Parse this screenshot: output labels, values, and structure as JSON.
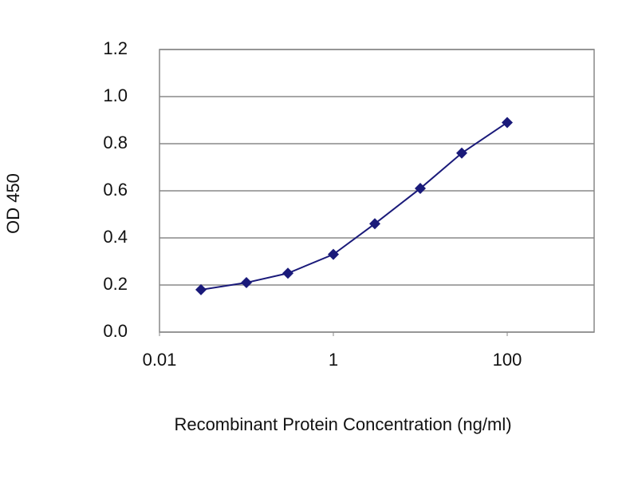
{
  "chart_data": {
    "type": "line",
    "x_label": "Recombinant Protein Concentration (ng/ml)",
    "y_label": "OD 450",
    "x": [
      0.03,
      0.1,
      0.3,
      1,
      3,
      10,
      30,
      100
    ],
    "series": [
      {
        "color": "#1a1a7a",
        "values": [
          0.18,
          0.21,
          0.25,
          0.33,
          0.46,
          0.61,
          0.76,
          0.89
        ]
      }
    ],
    "x_log": true,
    "xlim": [
      0.01,
      1000
    ],
    "xticks": [
      0.01,
      1,
      100
    ],
    "ylim": [
      0,
      1.2
    ],
    "yticks": [
      {
        "value": 0,
        "label": "0.0"
      },
      {
        "value": 0.2,
        "label": "0.2"
      },
      {
        "value": 0.4,
        "label": "0.4"
      },
      {
        "value": 0.6,
        "label": "0.6"
      },
      {
        "value": 0.8,
        "label": "0.8"
      },
      {
        "value": 1,
        "label": "1.0"
      },
      {
        "value": 1.2,
        "label": "1.2"
      }
    ],
    "grid": true
  }
}
